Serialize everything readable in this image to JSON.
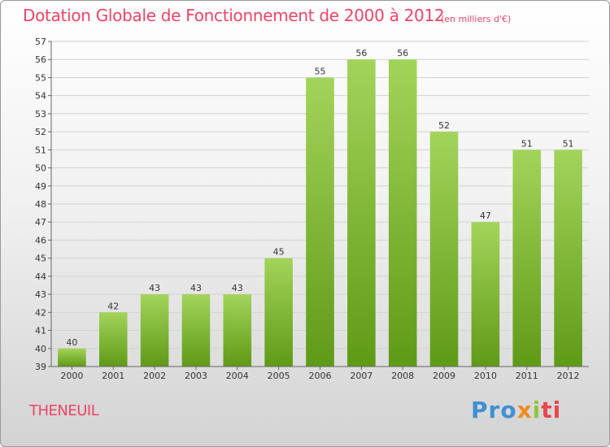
{
  "header": {
    "title": "Dotation Globale de Fonctionnement de 2000 à 2012",
    "subtitle": "(en milliers d'€)"
  },
  "footer": {
    "commune": "THENEUIL",
    "logo_parts": [
      "Pro",
      "x",
      "i",
      "ti"
    ]
  },
  "colors": {
    "title": "#ee4466",
    "bar_top": "#a3d45a",
    "bar_bottom": "#5f9a17"
  },
  "chart_data": {
    "type": "bar",
    "title": "Dotation Globale de Fonctionnement de 2000 à 2012",
    "subtitle": "(en milliers d'€)",
    "categories": [
      "2000",
      "2001",
      "2002",
      "2003",
      "2004",
      "2005",
      "2006",
      "2007",
      "2008",
      "2009",
      "2010",
      "2011",
      "2012"
    ],
    "values": [
      40,
      42,
      43,
      43,
      43,
      45,
      55,
      56,
      56,
      52,
      47,
      51,
      51
    ],
    "ylim": [
      39,
      57
    ],
    "yticks": [
      39,
      40,
      41,
      42,
      43,
      44,
      45,
      46,
      47,
      48,
      49,
      50,
      51,
      52,
      53,
      54,
      55,
      56,
      57
    ],
    "grid": true,
    "data_labels": true,
    "xlabel": "",
    "ylabel": ""
  }
}
